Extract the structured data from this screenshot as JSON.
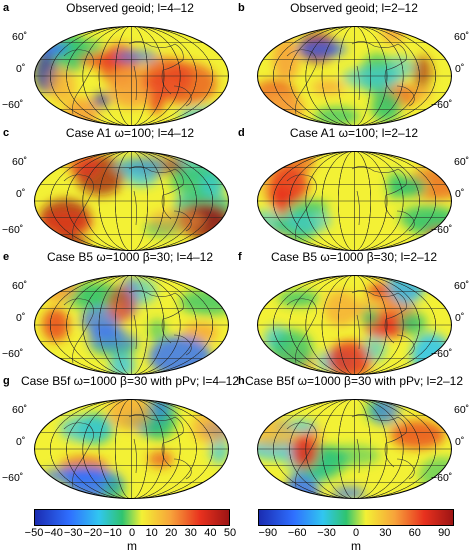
{
  "panels": [
    {
      "letter": "a",
      "title": "Observed geoid; l=4–12",
      "scale": "A",
      "pattern": 0
    },
    {
      "letter": "b",
      "title": "Observed geoid; l=2–12",
      "scale": "B",
      "pattern": 1
    },
    {
      "letter": "c",
      "title": "Case A1 ω=100; l=4–12",
      "scale": "A",
      "pattern": 2
    },
    {
      "letter": "d",
      "title": "Case A1 ω=100; l=2–12",
      "scale": "B",
      "pattern": 3
    },
    {
      "letter": "e",
      "title": "Case B5 ω=1000 β=30; l=4–12",
      "scale": "A",
      "pattern": 4
    },
    {
      "letter": "f",
      "title": "Case B5 ω=1000 β=30; l=2–12",
      "scale": "B",
      "pattern": 5
    },
    {
      "letter": "g",
      "title": "Case B5f ω=1000 β=30 with pPv; l=4–12",
      "scale": "A",
      "pattern": 6
    },
    {
      "letter": "h",
      "title": "Case B5f ω=1000 β=30 with pPv; l=2–12",
      "scale": "B",
      "pattern": 7
    }
  ],
  "lat_labels": {
    "north": "60˚",
    "equator": "0˚",
    "south": "−60˚"
  },
  "colorbars": [
    {
      "name": "left",
      "ticks": [
        "−50",
        "−40",
        "−30",
        "−20",
        "−10",
        "0",
        "10",
        "20",
        "30",
        "40",
        "50"
      ],
      "unit": "m",
      "min": -50,
      "max": 50
    },
    {
      "name": "right",
      "ticks": [
        "−90",
        "−60",
        "−30",
        "0",
        "30",
        "60",
        "90"
      ],
      "unit": "m",
      "min": -100,
      "max": 100
    }
  ],
  "colors": {
    "deep_blue": "#1a2bb0",
    "blue": "#2f6fff",
    "cyan": "#31c6f0",
    "green": "#2fc46f",
    "yellow": "#f3f135",
    "orange": "#f7a23a",
    "red": "#e8311e",
    "dark_red": "#9c1414"
  }
}
